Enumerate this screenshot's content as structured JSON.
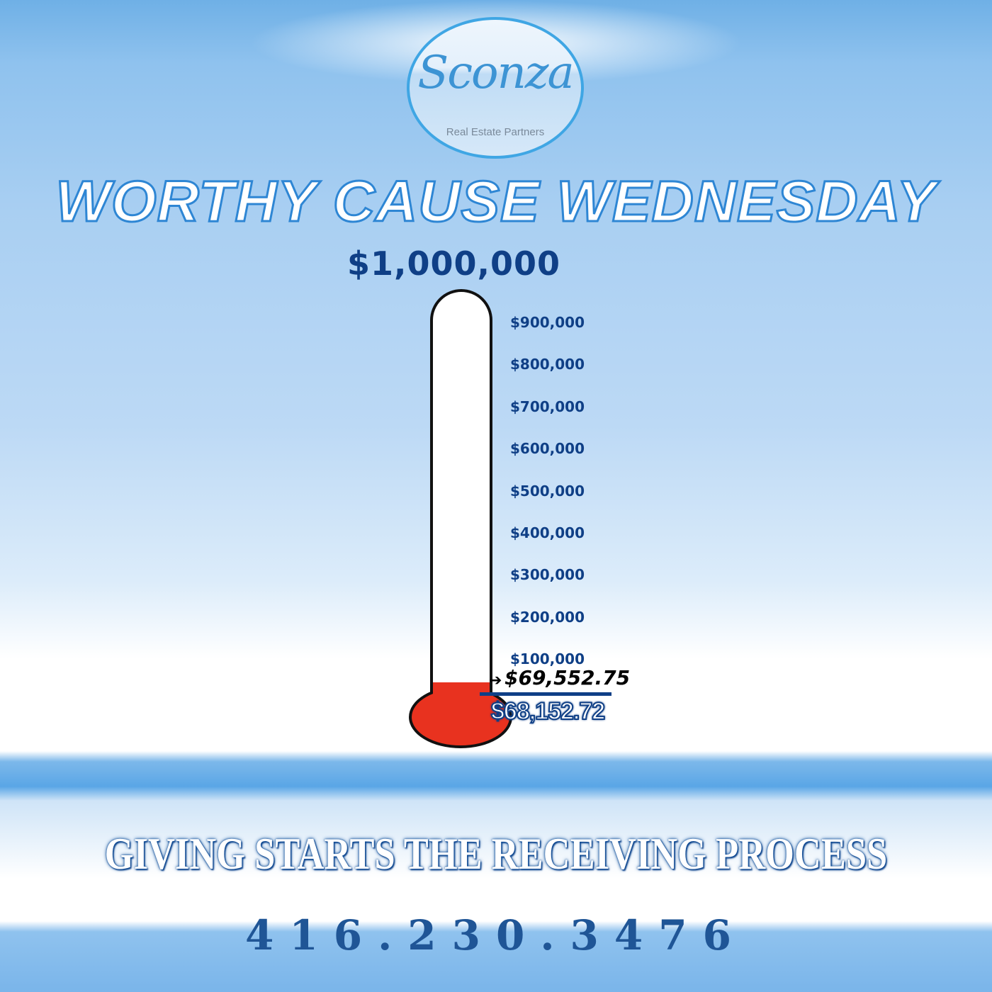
{
  "logo": {
    "brand": "Sconza",
    "tagline": "Real Estate Partners"
  },
  "title": "WORTHY CAUSE WEDNESDAY",
  "thermometer": {
    "goal_label": "$1,000,000",
    "goal": 1000000,
    "ticks": [
      "$900,000",
      "$800,000",
      "$700,000",
      "$600,000",
      "$500,000",
      "$400,000",
      "$300,000",
      "$200,000",
      "$100,000"
    ],
    "current_label": "$69,552.75",
    "current": 69552.75,
    "previous_label": "$68,152.72",
    "previous": 68152.72,
    "fill_color": "#e8321f",
    "text_color": "#0f3f86"
  },
  "slogan": "GIVING STARTS THE RECEIVING PROCESS",
  "phone": "416.230.3476"
}
